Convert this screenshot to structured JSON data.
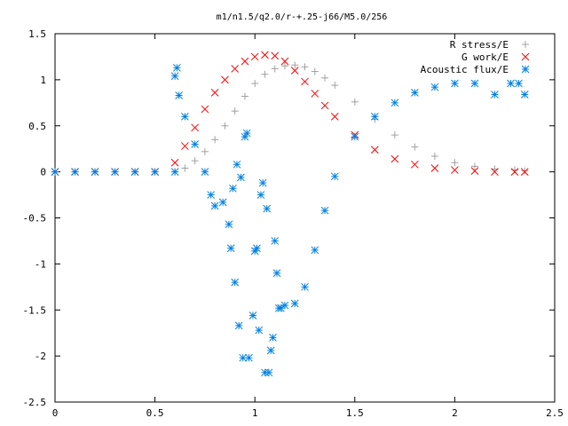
{
  "chart_data": {
    "type": "scatter",
    "title": "m1/n1.5/q2.0/r-+.25-j66/M5.0/256",
    "xlabel": "",
    "ylabel": "",
    "xlim": [
      0,
      2.5
    ],
    "ylim": [
      -2.5,
      1.5
    ],
    "xticks": [
      "0",
      "0.5",
      "1",
      "1.5",
      "2",
      "2.5"
    ],
    "yticks": [
      "-2.5",
      "-2",
      "-1.5",
      "-1",
      "-0.5",
      "0",
      "0.5",
      "1",
      "1.5"
    ],
    "legend_position": "top-right",
    "grid": false,
    "series": [
      {
        "name": "R stress/E",
        "marker": "plus",
        "color": "#a0a0a0",
        "x": [
          0.0,
          0.1,
          0.2,
          0.3,
          0.4,
          0.5,
          0.6,
          0.65,
          0.7,
          0.75,
          0.8,
          0.85,
          0.9,
          0.95,
          1.0,
          1.05,
          1.1,
          1.15,
          1.2,
          1.25,
          1.3,
          1.35,
          1.4,
          1.5,
          1.6,
          1.7,
          1.8,
          1.9,
          2.0,
          2.1,
          2.2,
          2.3,
          2.35
        ],
        "y": [
          0,
          0,
          0,
          0,
          0,
          0,
          0.0,
          0.04,
          0.12,
          0.22,
          0.35,
          0.5,
          0.66,
          0.82,
          0.96,
          1.06,
          1.12,
          1.15,
          1.16,
          1.14,
          1.09,
          1.02,
          0.94,
          0.76,
          0.57,
          0.4,
          0.27,
          0.17,
          0.1,
          0.06,
          0.03,
          0.02,
          0.01
        ]
      },
      {
        "name": "G work/E",
        "marker": "cross",
        "color": "#ff0000",
        "x": [
          0.0,
          0.1,
          0.2,
          0.3,
          0.4,
          0.5,
          0.6,
          0.65,
          0.7,
          0.75,
          0.8,
          0.85,
          0.9,
          0.95,
          1.0,
          1.05,
          1.1,
          1.15,
          1.2,
          1.25,
          1.3,
          1.35,
          1.4,
          1.5,
          1.6,
          1.7,
          1.8,
          1.9,
          2.0,
          2.1,
          2.2,
          2.3,
          2.35
        ],
        "y": [
          0,
          0,
          0,
          0,
          0,
          0,
          0.1,
          0.28,
          0.48,
          0.68,
          0.86,
          1.0,
          1.12,
          1.2,
          1.25,
          1.27,
          1.26,
          1.2,
          1.1,
          0.98,
          0.85,
          0.72,
          0.6,
          0.4,
          0.24,
          0.14,
          0.08,
          0.04,
          0.02,
          0.01,
          0.0,
          0.0,
          0.0
        ]
      },
      {
        "name": "Acoustic flux/E",
        "marker": "star",
        "color": "#0080e0",
        "x": [
          0.0,
          0.1,
          0.2,
          0.3,
          0.4,
          0.5,
          0.6,
          0.6,
          0.61,
          0.62,
          0.65,
          0.7,
          0.75,
          0.78,
          0.8,
          0.84,
          0.87,
          0.88,
          0.89,
          0.9,
          0.91,
          0.92,
          0.93,
          0.94,
          0.95,
          0.96,
          0.97,
          0.99,
          1.0,
          1.01,
          1.02,
          1.03,
          1.04,
          1.05,
          1.06,
          1.07,
          1.08,
          1.09,
          1.1,
          1.11,
          1.12,
          1.13,
          1.15,
          1.2,
          1.25,
          1.3,
          1.35,
          1.4,
          1.5,
          1.6,
          1.7,
          1.8,
          1.9,
          2.0,
          2.1,
          2.2,
          2.28,
          2.32,
          2.35
        ],
        "y": [
          0,
          0,
          0,
          0,
          0,
          0,
          0,
          1.04,
          1.13,
          0.83,
          0.6,
          0.3,
          0.0,
          -0.25,
          -0.37,
          -0.33,
          -0.57,
          -0.83,
          -0.18,
          -1.2,
          0.08,
          -1.67,
          -0.06,
          -2.02,
          0.38,
          0.42,
          -2.02,
          -1.56,
          -0.86,
          -0.83,
          -1.72,
          -0.25,
          -0.12,
          -2.18,
          -0.4,
          -2.18,
          -1.94,
          -1.8,
          -0.75,
          -1.1,
          -1.48,
          -1.48,
          -1.45,
          -1.43,
          -1.25,
          -0.85,
          -0.42,
          -0.05,
          0.38,
          0.6,
          0.75,
          0.86,
          0.92,
          0.96,
          0.96,
          0.84,
          0.96,
          0.96,
          0.84
        ]
      }
    ]
  }
}
